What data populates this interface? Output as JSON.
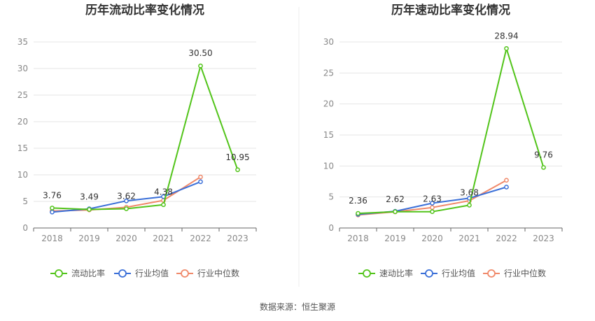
{
  "chart_data": [
    {
      "type": "line",
      "title": "历年流动比率变化情况",
      "categories": [
        "2018",
        "2019",
        "2020",
        "2021",
        "2022",
        "2023"
      ],
      "ylim": [
        0,
        35
      ],
      "yticks": [
        0,
        5,
        10,
        15,
        20,
        25,
        30,
        35
      ],
      "grid": true,
      "legend_position": "bottom",
      "series": [
        {
          "name": "流动比率",
          "color": "#52c41a",
          "values": [
            3.76,
            3.49,
            3.62,
            4.38,
            30.5,
            10.95
          ],
          "labels": [
            "3.76",
            "3.49",
            "3.62",
            "4.38",
            "30.50",
            "10.95"
          ]
        },
        {
          "name": "行业均值",
          "color": "#3a6fd8",
          "values": [
            3.0,
            3.6,
            5.1,
            5.9,
            8.7,
            null
          ]
        },
        {
          "name": "行业中位数",
          "color": "#f0896a",
          "values": [
            3.2,
            3.4,
            3.9,
            5.2,
            9.6,
            null
          ]
        }
      ]
    },
    {
      "type": "line",
      "title": "历年速动比率变化情况",
      "categories": [
        "2018",
        "2019",
        "2020",
        "2021",
        "2022",
        "2023"
      ],
      "ylim": [
        0,
        30
      ],
      "yticks": [
        0,
        5,
        10,
        15,
        20,
        25,
        30
      ],
      "grid": true,
      "legend_position": "bottom",
      "series": [
        {
          "name": "速动比率",
          "color": "#52c41a",
          "values": [
            2.36,
            2.62,
            2.63,
            3.68,
            28.94,
            9.76
          ],
          "labels": [
            "2.36",
            "2.62",
            "2.63",
            "3.68",
            "28.94",
            "9.76"
          ]
        },
        {
          "name": "行业均值",
          "color": "#3a6fd8",
          "values": [
            2.2,
            2.7,
            4.0,
            4.8,
            6.6,
            null
          ]
        },
        {
          "name": "行业中位数",
          "color": "#f0896a",
          "values": [
            2.1,
            2.6,
            3.3,
            4.4,
            7.7,
            null
          ]
        }
      ]
    }
  ],
  "footer": "数据来源：恒生聚源"
}
